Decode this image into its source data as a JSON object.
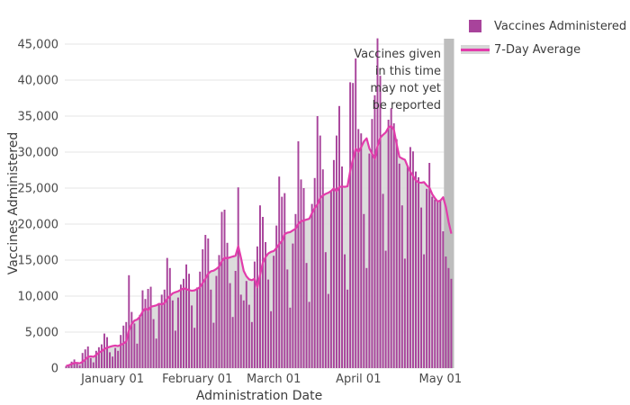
{
  "chart_data": {
    "type": "bar",
    "title": "",
    "xlabel": "Administration Date",
    "ylabel": "Vaccines Administered",
    "ylim": [
      0,
      45000
    ],
    "grid": true,
    "legend_position": "top-right",
    "start_date": "2020-12-15",
    "ytick_values": [
      0,
      5000,
      10000,
      15000,
      20000,
      25000,
      30000,
      35000,
      40000,
      45000
    ],
    "ytick_labels": [
      "0",
      "5,000",
      "10,000",
      "15,000",
      "20,000",
      "25,000",
      "30,000",
      "35,000",
      "40,000",
      "45,000"
    ],
    "xticks": [
      {
        "label": "January 01",
        "index": 17
      },
      {
        "label": "February 01",
        "index": 48
      },
      {
        "label": "March 01",
        "index": 76
      },
      {
        "label": "April 01",
        "index": 107
      },
      {
        "label": "May 01",
        "index": 137
      }
    ],
    "series": [
      {
        "name": "Vaccines Administered",
        "values": [
          300,
          500,
          900,
          1200,
          700,
          400,
          2100,
          2600,
          3000,
          1400,
          800,
          2400,
          2900,
          3300,
          4800,
          4300,
          2200,
          1600,
          2800,
          2400,
          4600,
          5900,
          6400,
          12900,
          7800,
          6200,
          3400,
          7400,
          10800,
          9600,
          11000,
          11300,
          6800,
          4100,
          8900,
          10200,
          10900,
          15300,
          13900,
          9400,
          5200,
          9800,
          11600,
          12400,
          14400,
          13100,
          8700,
          5600,
          11200,
          13400,
          16500,
          18500,
          18000,
          10900,
          6300,
          12800,
          15700,
          21700,
          22000,
          17400,
          11800,
          7100,
          13500,
          25100,
          10200,
          9400,
          12100,
          8800,
          6400,
          14800,
          16900,
          22600,
          21000,
          17500,
          12300,
          7900,
          15600,
          19800,
          26600,
          23800,
          24300,
          13700,
          8400,
          17300,
          21400,
          31500,
          26200,
          25000,
          14600,
          9200,
          22800,
          26400,
          35000,
          32300,
          27600,
          16100,
          10300,
          24500,
          28900,
          32300,
          36400,
          28000,
          15800,
          10900,
          39700,
          39600,
          43000,
          33200,
          32600,
          21400,
          13900,
          29800,
          34600,
          37900,
          45800,
          40600,
          24200,
          16300,
          34500,
          36100,
          34000,
          31800,
          28400,
          22600,
          15200,
          28100,
          30700,
          30100,
          27300,
          26500,
          22300,
          15800,
          24900,
          28500,
          23800,
          23400,
          23200,
          23300,
          19000,
          15500,
          13900,
          12400
        ]
      }
    ],
    "avg_window": 7,
    "recent_days_not_reported": 3,
    "legend": [
      {
        "label": "Vaccines Administered",
        "type": "bar",
        "color": "#a8439b"
      },
      {
        "label": "7-Day Average",
        "type": "line",
        "color": "#e23cab",
        "band_color": "#d6d6d6"
      }
    ],
    "annotation_lines": [
      "Vaccines given",
      "in this time",
      "may not yet",
      "be reported"
    ]
  },
  "colors": {
    "bar": "#a8439b",
    "avg_line": "#e23cab",
    "avg_area": "#d8d8d8",
    "recent_band": "#bdbdbd",
    "gridline": "#ebebeb",
    "tick_text": "#4a4a4a",
    "background": "#ffffff"
  }
}
